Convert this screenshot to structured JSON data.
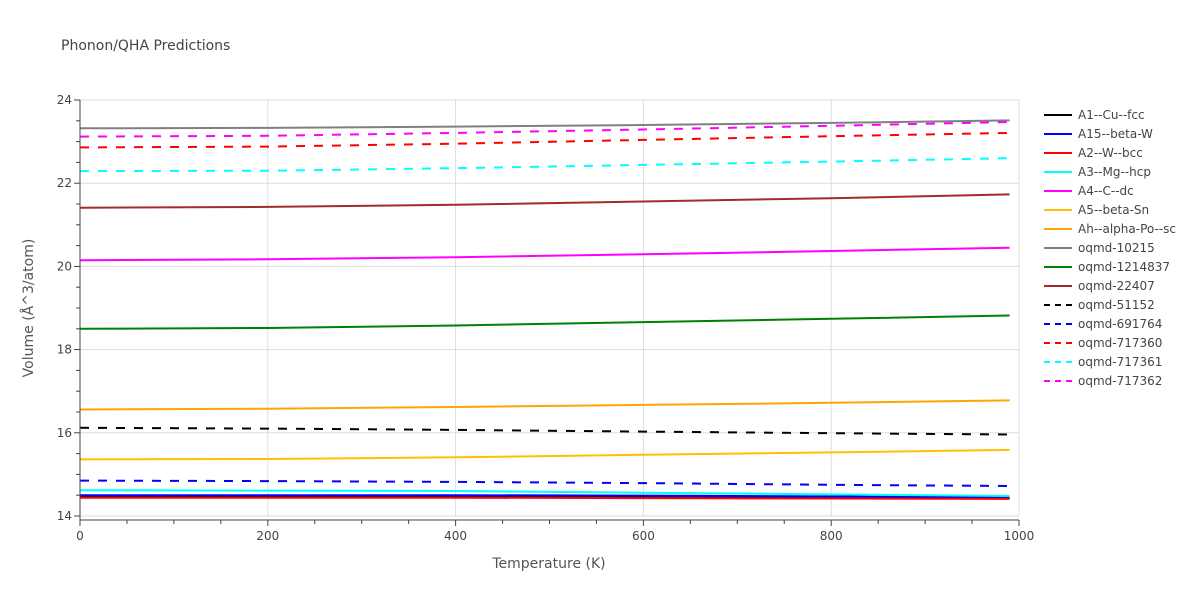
{
  "chart_data": {
    "type": "line",
    "title": "Phonon/QHA Predictions",
    "xlabel": "Temperature (K)",
    "ylabel": "Volume (Å^3/atom)",
    "xlim": [
      0,
      1000
    ],
    "ylim": [
      14,
      24
    ],
    "xticks": [
      0,
      200,
      400,
      600,
      800,
      1000
    ],
    "yticks": [
      14,
      16,
      18,
      20,
      22,
      24
    ],
    "grid": true,
    "legend_position": "right",
    "x": [
      0,
      200,
      400,
      600,
      800,
      990
    ],
    "series": [
      {
        "name": "A1--Cu--fcc",
        "color": "#000000",
        "dash": "solid",
        "values": [
          14.46,
          14.46,
          14.46,
          14.45,
          14.44,
          14.43
        ]
      },
      {
        "name": "A15--beta-W",
        "color": "#0000ff",
        "dash": "solid",
        "values": [
          14.5,
          14.5,
          14.5,
          14.49,
          14.47,
          14.45
        ]
      },
      {
        "name": "A2--W--bcc",
        "color": "#ff0000",
        "dash": "solid",
        "values": [
          14.44,
          14.44,
          14.44,
          14.43,
          14.42,
          14.41
        ]
      },
      {
        "name": "A3--Mg--hcp",
        "color": "#00ffff",
        "dash": "solid",
        "values": [
          14.62,
          14.61,
          14.6,
          14.56,
          14.52,
          14.48
        ]
      },
      {
        "name": "A4--C--dc",
        "color": "#ff00ff",
        "dash": "solid",
        "values": [
          20.15,
          20.17,
          20.22,
          20.29,
          20.37,
          20.45
        ]
      },
      {
        "name": "A5--beta-Sn",
        "color": "#ffc000",
        "dash": "solid",
        "values": [
          15.36,
          15.37,
          15.41,
          15.47,
          15.53,
          15.59
        ]
      },
      {
        "name": "Ah--alpha-Po--sc",
        "color": "#ffa500",
        "dash": "solid",
        "values": [
          16.56,
          16.58,
          16.62,
          16.67,
          16.72,
          16.78
        ]
      },
      {
        "name": "oqmd-10215",
        "color": "#808080",
        "dash": "solid",
        "values": [
          23.32,
          23.33,
          23.36,
          23.4,
          23.45,
          23.51
        ]
      },
      {
        "name": "oqmd-1214837",
        "color": "#008000",
        "dash": "solid",
        "values": [
          18.5,
          18.52,
          18.58,
          18.66,
          18.74,
          18.82
        ]
      },
      {
        "name": "oqmd-22407",
        "color": "#a52a2a",
        "dash": "solid",
        "values": [
          21.41,
          21.43,
          21.48,
          21.56,
          21.64,
          21.73
        ]
      },
      {
        "name": "oqmd-51152",
        "color": "#000000",
        "dash": "dash",
        "values": [
          16.12,
          16.1,
          16.07,
          16.03,
          15.99,
          15.96
        ]
      },
      {
        "name": "oqmd-691764",
        "color": "#0000ff",
        "dash": "dash",
        "values": [
          14.85,
          14.84,
          14.82,
          14.79,
          14.75,
          14.72
        ]
      },
      {
        "name": "oqmd-717360",
        "color": "#ff0000",
        "dash": "dash",
        "values": [
          22.86,
          22.88,
          22.95,
          23.04,
          23.13,
          23.21
        ]
      },
      {
        "name": "oqmd-717361",
        "color": "#00ffff",
        "dash": "dash",
        "values": [
          22.29,
          22.3,
          22.36,
          22.44,
          22.52,
          22.6
        ]
      },
      {
        "name": "oqmd-717362",
        "color": "#ff00ff",
        "dash": "dash",
        "values": [
          23.12,
          23.14,
          23.21,
          23.29,
          23.38,
          23.47
        ]
      }
    ]
  }
}
